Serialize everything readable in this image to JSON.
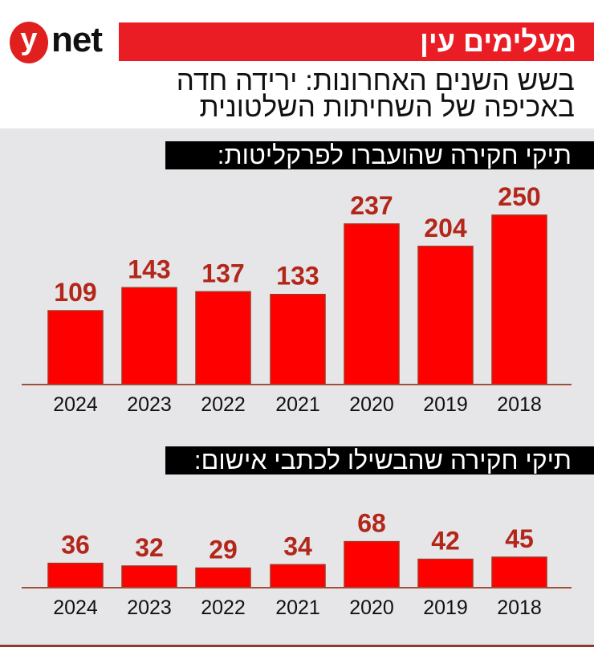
{
  "brand": {
    "logo_letter": "y",
    "logo_text": "net",
    "accent": "#ea1c24"
  },
  "header": {
    "title": "מעלימים עין",
    "subtitle_lines": [
      "בשש השנים האחרונות: ירידה חדה",
      "באכיפה של השחיתות השלטונית"
    ]
  },
  "chart_data": [
    {
      "type": "bar",
      "title": "תיקי חקירה שהועברו לפרקליטות:",
      "categories": [
        "2024",
        "2023",
        "2022",
        "2021",
        "2020",
        "2019",
        "2018"
      ],
      "values": [
        109,
        143,
        137,
        133,
        237,
        204,
        250
      ],
      "bar_color": "#ff0000",
      "label_color": "#b3261a"
    },
    {
      "type": "bar",
      "title": "תיקי חקירה שהבשילו לכתבי אישום:",
      "categories": [
        "2024",
        "2023",
        "2022",
        "2021",
        "2020",
        "2019",
        "2018"
      ],
      "values": [
        36,
        32,
        29,
        34,
        68,
        42,
        45
      ],
      "bar_color": "#ff0000",
      "label_color": "#b3261a"
    }
  ]
}
